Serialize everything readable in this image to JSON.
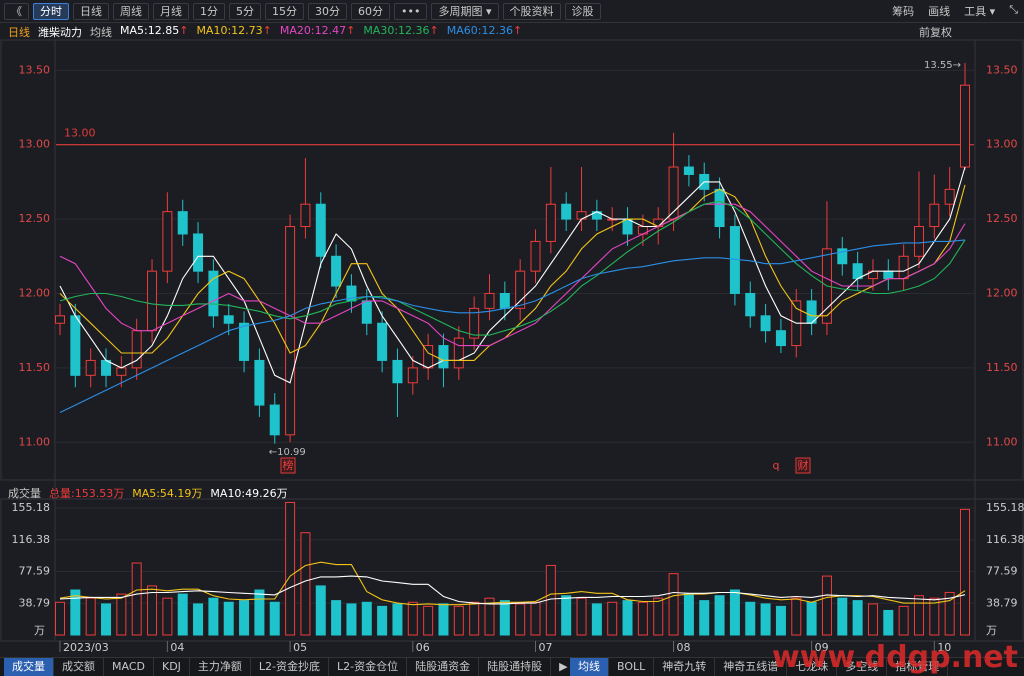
{
  "toolbar": {
    "left": [
      "《",
      "分时",
      "日线",
      "周线",
      "月线",
      "1分",
      "5分",
      "15分",
      "30分",
      "60分",
      "•••",
      "多周期图 ▾",
      "个股资料",
      "诊股"
    ],
    "right": [
      "筹码",
      "画线",
      "工具 ▾",
      "⤡"
    ]
  },
  "chart_data": [
    {
      "type": "candlestick",
      "period": "日线",
      "title": "潍柴动力",
      "ma_label": "均线",
      "adjust": "前复权",
      "legend_arrow": "↑",
      "up_color": "#ef3b3b",
      "down_color": "#1fc3cc",
      "open": [
        11.8,
        11.85,
        11.45,
        11.55,
        11.45,
        11.5,
        11.75,
        12.15,
        12.55,
        12.4,
        12.15,
        11.85,
        11.8,
        11.55,
        11.25,
        11.05,
        12.45,
        12.6,
        12.25,
        12.05,
        11.95,
        11.8,
        11.55,
        11.4,
        11.5,
        11.65,
        11.5,
        11.7,
        11.9,
        12.0,
        11.9,
        12.15,
        12.35,
        12.6,
        12.5,
        12.55,
        12.5,
        12.5,
        12.4,
        12.45,
        12.5,
        12.85,
        12.8,
        12.7,
        12.45,
        12.0,
        11.85,
        11.75,
        11.65,
        11.95,
        11.8,
        12.3,
        12.2,
        12.1,
        12.15,
        12.1,
        12.25,
        12.45,
        12.6,
        12.85
      ],
      "high": [
        11.93,
        11.93,
        11.63,
        11.63,
        11.58,
        11.83,
        12.23,
        12.68,
        12.63,
        12.48,
        12.23,
        11.93,
        11.88,
        11.63,
        11.33,
        12.53,
        12.91,
        12.68,
        12.33,
        12.13,
        12.03,
        11.88,
        11.63,
        11.58,
        11.73,
        11.73,
        11.78,
        11.98,
        12.13,
        12.08,
        12.23,
        12.43,
        12.85,
        12.68,
        12.85,
        12.63,
        12.58,
        12.58,
        12.53,
        12.58,
        13.08,
        12.93,
        12.88,
        12.78,
        12.53,
        12.08,
        11.93,
        11.83,
        12.03,
        12.03,
        12.62,
        12.38,
        12.28,
        12.23,
        12.23,
        12.33,
        12.82,
        12.8,
        12.85,
        13.55
      ],
      "low": [
        11.72,
        11.37,
        11.37,
        11.37,
        11.37,
        11.42,
        11.67,
        12.07,
        12.32,
        12.07,
        11.77,
        11.72,
        11.47,
        11.17,
        10.99,
        11.0,
        12.37,
        12.17,
        11.97,
        11.87,
        11.72,
        11.47,
        11.17,
        11.32,
        11.42,
        11.37,
        11.42,
        11.62,
        11.82,
        11.82,
        11.82,
        12.07,
        12.27,
        12.42,
        12.42,
        12.42,
        12.42,
        12.32,
        12.32,
        12.33,
        12.42,
        12.72,
        12.62,
        12.37,
        11.92,
        11.77,
        11.67,
        11.6,
        11.57,
        11.72,
        11.72,
        12.12,
        12.02,
        12.02,
        12.02,
        12.02,
        12.17,
        12.37,
        12.52,
        12.83
      ],
      "close": [
        11.85,
        11.45,
        11.55,
        11.45,
        11.5,
        11.75,
        12.15,
        12.55,
        12.4,
        12.15,
        11.85,
        11.8,
        11.55,
        11.25,
        11.05,
        12.45,
        12.6,
        12.25,
        12.05,
        11.95,
        11.8,
        11.55,
        11.4,
        11.5,
        11.65,
        11.5,
        11.7,
        11.9,
        12.0,
        11.9,
        12.15,
        12.35,
        12.6,
        12.5,
        12.55,
        12.5,
        12.5,
        12.4,
        12.45,
        12.5,
        12.85,
        12.8,
        12.7,
        12.45,
        12.0,
        11.85,
        11.75,
        11.65,
        11.95,
        11.8,
        12.3,
        12.2,
        12.1,
        12.15,
        12.1,
        12.25,
        12.45,
        12.6,
        12.7,
        13.4
      ],
      "series": [
        {
          "name": "MA5:12.85",
          "color": "#ffffff",
          "values": [
            12.05,
            11.85,
            11.7,
            11.55,
            11.5,
            11.55,
            11.65,
            11.85,
            12.1,
            12.25,
            12.25,
            12.1,
            11.95,
            11.7,
            11.45,
            11.4,
            11.8,
            12.2,
            12.4,
            12.3,
            12.05,
            11.85,
            11.7,
            11.55,
            11.5,
            11.55,
            11.55,
            11.6,
            11.75,
            11.85,
            11.95,
            12.05,
            12.2,
            12.35,
            12.5,
            12.55,
            12.5,
            12.5,
            12.45,
            12.45,
            12.55,
            12.65,
            12.75,
            12.75,
            12.55,
            12.3,
            12.05,
            11.85,
            11.8,
            11.8,
            11.9,
            12.0,
            12.1,
            12.15,
            12.15,
            12.15,
            12.2,
            12.35,
            12.5,
            12.85
          ]
        },
        {
          "name": "MA10:12.73",
          "color": "#f2c318",
          "values": [
            12.0,
            11.9,
            11.8,
            11.7,
            11.6,
            11.6,
            11.6,
            11.7,
            11.85,
            12.0,
            12.1,
            12.15,
            12.1,
            11.95,
            11.8,
            11.6,
            11.65,
            11.8,
            12.0,
            12.2,
            12.2,
            12.0,
            11.9,
            11.75,
            11.6,
            11.55,
            11.55,
            11.55,
            11.65,
            11.7,
            11.8,
            11.9,
            12.05,
            12.15,
            12.3,
            12.4,
            12.45,
            12.5,
            12.5,
            12.45,
            12.5,
            12.55,
            12.65,
            12.7,
            12.65,
            12.5,
            12.25,
            12.05,
            11.9,
            11.85,
            11.85,
            11.95,
            12.0,
            12.05,
            12.1,
            12.1,
            12.15,
            12.2,
            12.35,
            12.73
          ]
        },
        {
          "name": "MA20:12.47",
          "color": "#e545c4",
          "values": [
            12.25,
            12.2,
            12.05,
            11.9,
            11.8,
            11.75,
            11.75,
            11.8,
            11.85,
            11.9,
            11.95,
            12.0,
            11.95,
            11.95,
            11.9,
            11.85,
            11.8,
            11.8,
            11.85,
            11.9,
            11.95,
            11.95,
            11.9,
            11.85,
            11.8,
            11.7,
            11.65,
            11.65,
            11.65,
            11.7,
            11.75,
            11.8,
            11.9,
            12.0,
            12.1,
            12.2,
            12.3,
            12.35,
            12.4,
            12.45,
            12.5,
            12.55,
            12.6,
            12.6,
            12.6,
            12.55,
            12.45,
            12.35,
            12.25,
            12.15,
            12.1,
            12.05,
            12.05,
            12.05,
            12.1,
            12.1,
            12.15,
            12.2,
            12.3,
            12.47
          ]
        },
        {
          "name": "MA30:12.36",
          "color": "#22b55a",
          "values": [
            11.95,
            11.98,
            12.0,
            12.0,
            11.98,
            11.95,
            11.93,
            11.92,
            11.92,
            11.93,
            11.93,
            11.92,
            11.9,
            11.88,
            11.85,
            11.83,
            11.85,
            11.88,
            11.93,
            11.95,
            11.98,
            11.98,
            11.95,
            11.9,
            11.85,
            11.8,
            11.75,
            11.72,
            11.72,
            11.75,
            11.78,
            11.82,
            11.88,
            11.95,
            12.05,
            12.12,
            12.2,
            12.28,
            12.35,
            12.42,
            12.48,
            12.55,
            12.6,
            12.62,
            12.58,
            12.5,
            12.4,
            12.3,
            12.2,
            12.12,
            12.05,
            12.03,
            12.02,
            12.0,
            12.0,
            12.02,
            12.05,
            12.1,
            12.2,
            12.36
          ]
        },
        {
          "name": "MA60:12.36",
          "color": "#2a8fe6",
          "values": [
            11.2,
            11.25,
            11.3,
            11.35,
            11.4,
            11.45,
            11.5,
            11.55,
            11.6,
            11.65,
            11.7,
            11.75,
            11.78,
            11.8,
            11.82,
            11.85,
            11.9,
            11.93,
            11.95,
            11.97,
            11.98,
            11.97,
            11.95,
            11.92,
            11.9,
            11.88,
            11.87,
            11.87,
            11.88,
            11.9,
            11.92,
            11.95,
            12.0,
            12.05,
            12.1,
            12.13,
            12.15,
            12.17,
            12.18,
            12.2,
            12.22,
            12.23,
            12.24,
            12.24,
            12.23,
            12.22,
            12.2,
            12.2,
            12.22,
            12.24,
            12.26,
            12.28,
            12.3,
            12.32,
            12.33,
            12.34,
            12.34,
            12.35,
            12.35,
            12.36
          ]
        }
      ],
      "ylim": [
        10.78,
        13.65
      ],
      "yticks": [
        {
          "value": 11,
          "label": "11.00"
        },
        {
          "value": 11.5,
          "label": "11.50"
        },
        {
          "value": 12,
          "label": "12.00"
        },
        {
          "value": 12.5,
          "label": "12.50"
        },
        {
          "value": 13,
          "label": "13.00"
        },
        {
          "value": 13.5,
          "label": "13.50"
        }
      ],
      "reference_line": {
        "value": 13,
        "label": "13.00",
        "color": "#e03a3a"
      },
      "annotations": [
        "13.55→",
        "←10.99"
      ],
      "markers": [
        "榜",
        "q",
        "财"
      ]
    },
    {
      "type": "bar",
      "title": "成交量",
      "y_unit": "万",
      "categories": [
        "2023/03",
        null,
        null,
        null,
        null,
        null,
        null,
        "04",
        null,
        null,
        null,
        null,
        null,
        null,
        null,
        "05",
        null,
        null,
        null,
        null,
        null,
        null,
        null,
        "06",
        null,
        null,
        null,
        null,
        null,
        null,
        null,
        "07",
        null,
        null,
        null,
        null,
        null,
        null,
        null,
        null,
        "08",
        null,
        null,
        null,
        null,
        null,
        null,
        null,
        null,
        "09",
        null,
        null,
        null,
        null,
        null,
        null,
        null,
        "10",
        null,
        null
      ],
      "series": [
        {
          "name": "总量:153.53万",
          "color": "#ef3b3b",
          "values": [
            40,
            55,
            45,
            38,
            50,
            88,
            60,
            45,
            50,
            38,
            45,
            40,
            42,
            55,
            40,
            162,
            125,
            60,
            42,
            38,
            40,
            35,
            38,
            40,
            35,
            38,
            35,
            40,
            45,
            42,
            38,
            40,
            85,
            48,
            45,
            38,
            40,
            42,
            40,
            45,
            75,
            50,
            42,
            48,
            55,
            40,
            38,
            35,
            45,
            40,
            72,
            45,
            42,
            38,
            30,
            35,
            48,
            45,
            52,
            153.53
          ]
        },
        {
          "name": "MA5:54.19万",
          "color": "#f2c318",
          "values": [
            45,
            48,
            46,
            44,
            45,
            55,
            56,
            54,
            56,
            56,
            48,
            44,
            43,
            44,
            44,
            72,
            85,
            89,
            86,
            86,
            53,
            43,
            39,
            37,
            38,
            37,
            37,
            38,
            39,
            40,
            40,
            41,
            50,
            51,
            53,
            51,
            51,
            43,
            41,
            41,
            48,
            50,
            50,
            52,
            52,
            49,
            45,
            43,
            44,
            40,
            46,
            48,
            48,
            47,
            43,
            39,
            39,
            39,
            42,
            54.19
          ]
        },
        {
          "name": "MA10:49.26万",
          "color": "#ffffff",
          "values": [
            44,
            45,
            46,
            46,
            46,
            50,
            52,
            52,
            53,
            54,
            53,
            52,
            51,
            50,
            49,
            58,
            66,
            71,
            71,
            72,
            71,
            66,
            64,
            62,
            62,
            47,
            41,
            39,
            38,
            38,
            39,
            39,
            44,
            45,
            46,
            46,
            47,
            47,
            47,
            48,
            52,
            51,
            51,
            52,
            52,
            50,
            48,
            46,
            47,
            46,
            49,
            48,
            47,
            48,
            46,
            45,
            44,
            43,
            45,
            49.26
          ]
        }
      ],
      "ylim": [
        0,
        165
      ],
      "yticks": [
        38.79,
        77.59,
        116.38,
        155.18
      ]
    }
  ],
  "bottom_tabs": {
    "left": [
      "成交量",
      "成交额",
      "MACD",
      "KDJ",
      "主力净额",
      "L2-资金抄底",
      "L2-资金仓位",
      "陆股通资金",
      "陆股通持股",
      "▶"
    ],
    "right": [
      "均线",
      "BOLL",
      "神奇九转",
      "神奇五线谱",
      "七龙珠",
      "多空线",
      "指标管理"
    ]
  },
  "watermark": "www.ddgp.net"
}
